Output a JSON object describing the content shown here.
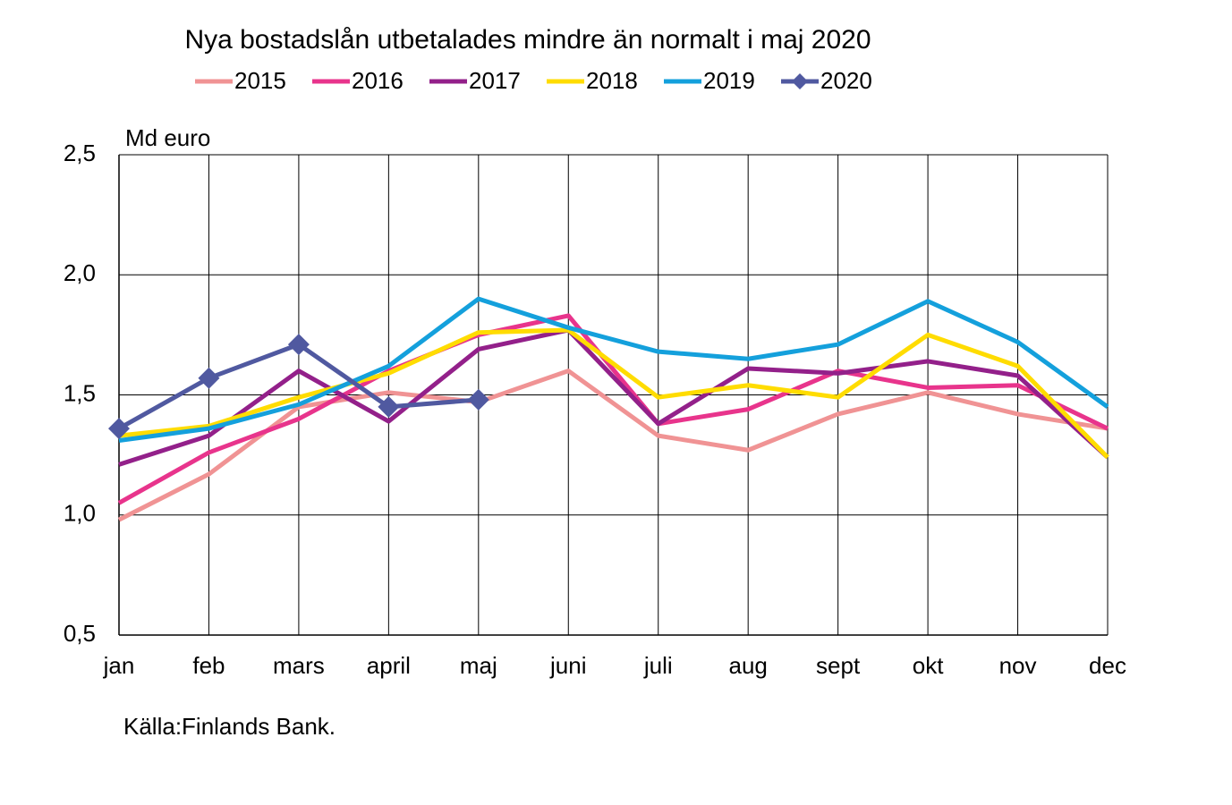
{
  "chart_data": {
    "type": "line",
    "title": "Nya bostadslån utbetalades mindre än normalt i maj 2020",
    "y_label": "Md euro",
    "source": "Källa:Finlands Bank.",
    "categories": [
      "jan",
      "feb",
      "mars",
      "april",
      "maj",
      "juni",
      "juli",
      "aug",
      "sept",
      "okt",
      "nov",
      "dec"
    ],
    "ylim": [
      0.5,
      2.5
    ],
    "yticks": [
      {
        "value": 0.5,
        "label": "0,5"
      },
      {
        "value": 1,
        "label": "1,0"
      },
      {
        "value": 1.5,
        "label": "1,5"
      },
      {
        "value": 2,
        "label": "2,0"
      },
      {
        "value": 2.5,
        "label": "2,5"
      }
    ],
    "grid": true,
    "series": [
      {
        "name": "2015",
        "color": "#f09394",
        "values": [
          0.98,
          1.17,
          1.45,
          1.51,
          1.47,
          1.6,
          1.33,
          1.27,
          1.42,
          1.51,
          1.42,
          1.36
        ]
      },
      {
        "name": "2016",
        "color": "#e8348c",
        "values": [
          1.05,
          1.26,
          1.4,
          1.6,
          1.75,
          1.83,
          1.38,
          1.44,
          1.6,
          1.53,
          1.54,
          1.36
        ]
      },
      {
        "name": "2017",
        "color": "#93208a",
        "values": [
          1.21,
          1.33,
          1.6,
          1.39,
          1.69,
          1.77,
          1.38,
          1.61,
          1.59,
          1.64,
          1.58,
          1.24
        ]
      },
      {
        "name": "2018",
        "color": "#ffdc00",
        "values": [
          1.33,
          1.37,
          1.49,
          1.59,
          1.76,
          1.77,
          1.49,
          1.54,
          1.49,
          1.75,
          1.62,
          1.24
        ]
      },
      {
        "name": "2019",
        "color": "#14a0dc",
        "values": [
          1.31,
          1.36,
          1.46,
          1.62,
          1.9,
          1.78,
          1.68,
          1.65,
          1.71,
          1.89,
          1.72,
          1.45
        ]
      },
      {
        "name": "2020",
        "color": "#5059a0",
        "marker": "diamond",
        "values": [
          1.36,
          1.57,
          1.71,
          1.45,
          1.48,
          null,
          null,
          null,
          null,
          null,
          null,
          null
        ]
      }
    ]
  }
}
